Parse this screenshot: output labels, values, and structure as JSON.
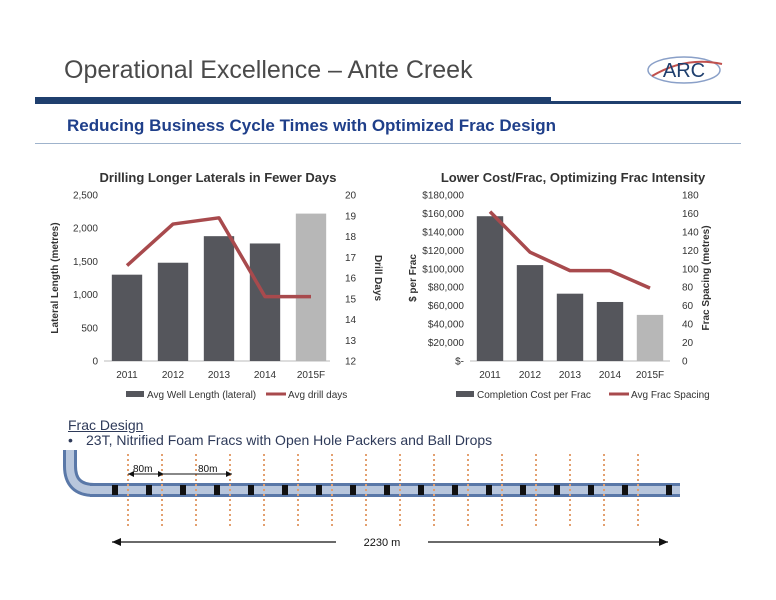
{
  "header": {
    "title": "Operational Excellence – Ante Creek",
    "subtitle": "Reducing Business Cycle Times with Optimized Frac Design",
    "logo_text": "ARC",
    "brand_color": "#1f3f6e"
  },
  "chart_data": [
    {
      "type": "bar+line",
      "title": "Drilling Longer Laterals in Fewer Days",
      "categories": [
        "2011",
        "2012",
        "2013",
        "2014",
        "2015F"
      ],
      "ylabel": "Lateral Length (metres)",
      "y2label": "Drill Days",
      "ylim": [
        0,
        2500
      ],
      "y2lim": [
        12,
        20
      ],
      "yticks": [
        "0",
        "500",
        "1,000",
        "1,500",
        "2,000",
        "2,500"
      ],
      "y2ticks": [
        "12",
        "13",
        "14",
        "15",
        "16",
        "17",
        "18",
        "19",
        "20"
      ],
      "series": [
        {
          "name": "Avg Well Length (lateral)",
          "kind": "bar",
          "axis": "left",
          "values": [
            1300,
            1480,
            1880,
            1770,
            2220
          ],
          "colors": [
            "#55565c",
            "#55565c",
            "#55565c",
            "#55565c",
            "#b7b7b7"
          ]
        },
        {
          "name": "Avg drill days",
          "kind": "line",
          "axis": "right",
          "values": [
            16.6,
            18.6,
            18.9,
            15.1,
            15.1
          ],
          "color": "#a84a4d"
        }
      ],
      "legend": "bottom",
      "grid": false
    },
    {
      "type": "bar+line",
      "title": "Lower Cost/Frac, Optimizing Frac Intensity",
      "categories": [
        "2011",
        "2012",
        "2013",
        "2014",
        "2015F"
      ],
      "ylabel": "$ per Frac",
      "y2label": "Frac Spacing (metres)",
      "ylim": [
        0,
        180000
      ],
      "y2lim": [
        0,
        180
      ],
      "yticks": [
        "$-",
        "$20,000",
        "$40,000",
        "$60,000",
        "$80,000",
        "$100,000",
        "$120,000",
        "$140,000",
        "$160,000",
        "$180,000"
      ],
      "y2ticks": [
        "0",
        "20",
        "40",
        "60",
        "80",
        "100",
        "120",
        "140",
        "160",
        "180"
      ],
      "series": [
        {
          "name": "Completion Cost per Frac",
          "kind": "bar",
          "axis": "left",
          "values": [
            157000,
            104000,
            73000,
            64000,
            50000
          ],
          "colors": [
            "#55565c",
            "#55565c",
            "#55565c",
            "#55565c",
            "#b7b7b7"
          ]
        },
        {
          "name": "Avg Frac Spacing",
          "kind": "line",
          "axis": "right",
          "values": [
            162,
            118,
            98,
            98,
            79
          ],
          "color": "#a84a4d"
        }
      ],
      "legend": "bottom",
      "grid": false
    }
  ],
  "frac": {
    "heading": "Frac Design",
    "bullet_mark": "•",
    "bullet": "23T, Nitrified Foam Fracs with Open Hole Packers and Ball Drops",
    "spacing_label_1": "80m",
    "spacing_label_2": "80m",
    "length_label": "2230 m"
  }
}
